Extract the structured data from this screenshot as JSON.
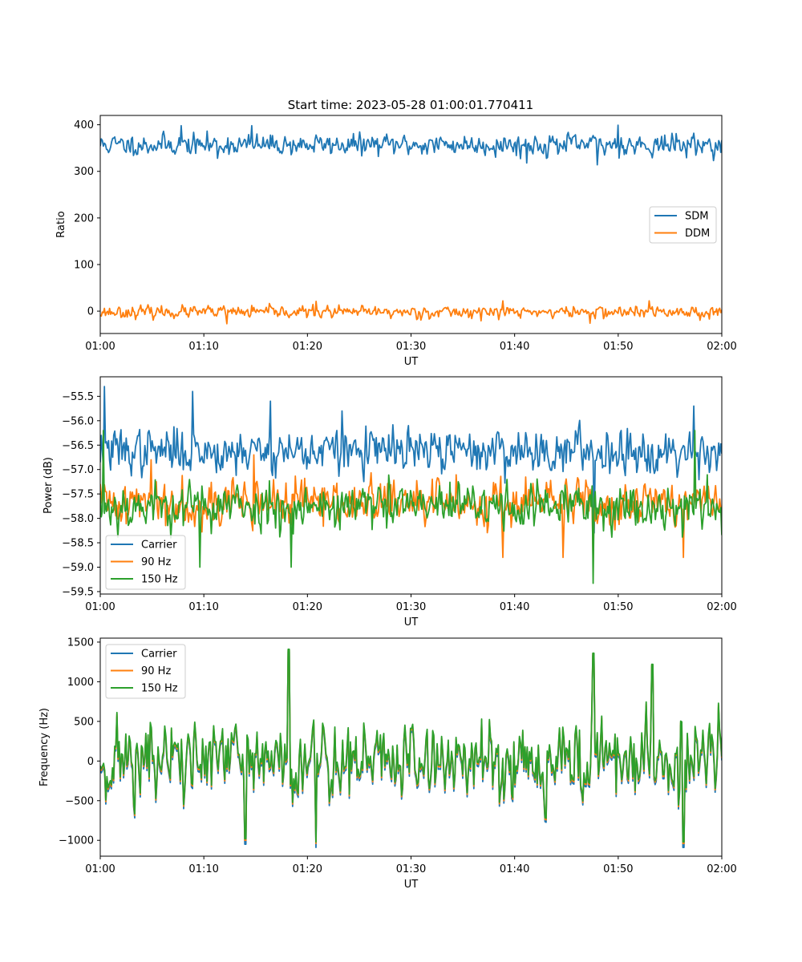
{
  "title": "Start time: 2023-05-28 01:00:01.770411",
  "colors": {
    "blue": "#1f77b4",
    "orange": "#ff7f0e",
    "green": "#2ca02c"
  },
  "chart_data": [
    {
      "type": "line",
      "xlabel": "UT",
      "ylabel": "Ratio",
      "ylim": [
        -48,
        420
      ],
      "yticks": [
        0,
        100,
        200,
        300,
        400
      ],
      "xticks": [
        "01:00",
        "01:10",
        "01:20",
        "01:30",
        "01:40",
        "01:50",
        "02:00"
      ],
      "xlim": [
        0,
        60
      ],
      "legend": "center-right",
      "n_points": 600,
      "series": [
        {
          "name": "SDM",
          "color": "#1f77b4",
          "mean": 357,
          "noise": 14,
          "spikes": [
            [
              7.8,
              398
            ],
            [
              14.6,
              398
            ],
            [
              50.0,
              399
            ],
            [
              11.3,
              328
            ],
            [
              41.2,
              318
            ],
            [
              48.0,
              314
            ]
          ],
          "seed": 11
        },
        {
          "name": "DDM",
          "color": "#ff7f0e",
          "mean": -2,
          "noise": 8,
          "spikes": [
            [
              12.2,
              -27
            ],
            [
              20.8,
              21
            ],
            [
              38.9,
              22
            ],
            [
              53.0,
              22
            ],
            [
              47.3,
              -26
            ]
          ],
          "seed": 23
        }
      ]
    },
    {
      "type": "line",
      "xlabel": "UT",
      "ylabel": "Power (dB)",
      "ylim": [
        -59.55,
        -55.1
      ],
      "yticks": [
        -55.5,
        -56.0,
        -56.5,
        -57.0,
        -57.5,
        -58.0,
        -58.5,
        -59.0,
        -59.5
      ],
      "xticks": [
        "01:00",
        "01:10",
        "01:20",
        "01:30",
        "01:40",
        "01:50",
        "02:00"
      ],
      "xlim": [
        0,
        60
      ],
      "legend": "lower-left",
      "n_points": 600,
      "series": [
        {
          "name": "Carrier",
          "color": "#1f77b4",
          "mean": -56.62,
          "noise": 0.28,
          "spikes": [
            [
              0.4,
              -55.3
            ],
            [
              8.9,
              -55.4
            ],
            [
              16.4,
              -55.6
            ],
            [
              23.3,
              -55.8
            ],
            [
              50.3,
              -56.2
            ],
            [
              57.3,
              -55.7
            ],
            [
              47.7,
              -58.3
            ]
          ],
          "seed": 37
        },
        {
          "name": "90 Hz",
          "color": "#ff7f0e",
          "mean": -57.67,
          "noise": 0.3,
          "spikes": [
            [
              4.9,
              -56.8
            ],
            [
              14.8,
              -56.7
            ],
            [
              38.9,
              -58.8
            ],
            [
              44.7,
              -58.8
            ],
            [
              47.6,
              -58.9
            ],
            [
              56.3,
              -58.8
            ]
          ],
          "seed": 41
        },
        {
          "name": "150 Hz",
          "color": "#2ca02c",
          "mean": -57.75,
          "noise": 0.3,
          "spikes": [
            [
              0.3,
              -56.2
            ],
            [
              9.6,
              -59.0
            ],
            [
              18.4,
              -59.0
            ],
            [
              47.6,
              -59.33
            ],
            [
              57.4,
              -56.2
            ]
          ],
          "seed": 53
        }
      ]
    },
    {
      "type": "line",
      "xlabel": "UT",
      "ylabel": "Frequency (Hz)",
      "ylim": [
        -1200,
        1550
      ],
      "yticks": [
        1500,
        1000,
        500,
        0,
        -500,
        -1000
      ],
      "xticks": [
        "01:00",
        "01:10",
        "01:20",
        "01:30",
        "01:40",
        "01:50",
        "02:00"
      ],
      "xlim": [
        0,
        60
      ],
      "legend": "upper-left",
      "n_points": 560,
      "series": [
        {
          "name": "Carrier",
          "color": "#1f77b4",
          "mean": -30,
          "noise": 330,
          "spikes": [
            [
              18.2,
              1380
            ],
            [
              47.6,
              1330
            ],
            [
              53.3,
              1190
            ],
            [
              14.0,
              -1050
            ],
            [
              20.8,
              -1090
            ],
            [
              56.3,
              -1090
            ]
          ],
          "seed": 71
        },
        {
          "name": "90 Hz",
          "color": "#ff7f0e",
          "mean": 0,
          "noise": 330,
          "spikes": [
            [
              18.2,
              1400
            ],
            [
              47.6,
              1350
            ],
            [
              53.3,
              1210
            ],
            [
              14.0,
              -1000
            ],
            [
              20.8,
              -1040
            ],
            [
              56.3,
              -1040
            ]
          ],
          "seed": 71
        },
        {
          "name": "150 Hz",
          "color": "#2ca02c",
          "mean": 20,
          "noise": 330,
          "spikes": [
            [
              18.2,
              1410
            ],
            [
              47.6,
              1360
            ],
            [
              53.3,
              1220
            ],
            [
              14.0,
              -980
            ],
            [
              20.8,
              -1020
            ],
            [
              56.3,
              -1020
            ]
          ],
          "seed": 71
        }
      ]
    }
  ]
}
